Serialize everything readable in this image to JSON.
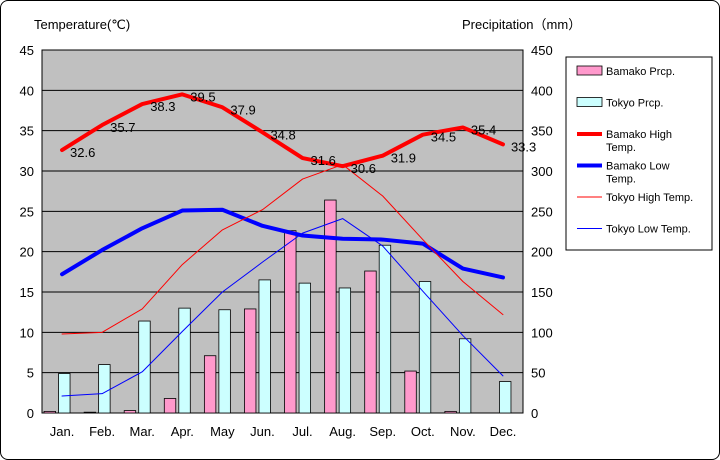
{
  "chart_data": {
    "type": "bar+line",
    "title": "",
    "ylabel_left": "Temperature(℃)",
    "ylabel_right": "Precipitation（mm）",
    "ylim_left": [
      0,
      45
    ],
    "ylim_right": [
      0,
      450
    ],
    "yticks_left": [
      "0",
      "5",
      "10",
      "15",
      "20",
      "25",
      "30",
      "35",
      "40",
      "45"
    ],
    "yticks_right": [
      "0",
      "50",
      "100",
      "150",
      "200",
      "250",
      "300",
      "350",
      "400",
      "450"
    ],
    "categories": [
      "Jan.",
      "Feb.",
      "Mar.",
      "Apr.",
      "May",
      "Jun.",
      "Jul.",
      "Aug.",
      "Sep.",
      "Oct.",
      "Nov.",
      "Dec."
    ],
    "bar_series": [
      {
        "name": "Bamako Prcp.",
        "color": "#ff99cc",
        "values": [
          2,
          1,
          3,
          18,
          71,
          129,
          226,
          264,
          176,
          52,
          2,
          0
        ]
      },
      {
        "name": "Tokyo Prcp.",
        "color": "#ccffff",
        "values": [
          49,
          60,
          114,
          130,
          128,
          165,
          161,
          155,
          208,
          163,
          92,
          39
        ]
      }
    ],
    "line_series": [
      {
        "name": "Bamako High Temp.",
        "color": "#ff0000",
        "width": "thick",
        "values": [
          32.6,
          35.7,
          38.3,
          39.5,
          37.9,
          34.8,
          31.6,
          30.6,
          31.9,
          34.5,
          35.4,
          33.3
        ],
        "labels": [
          "32.6",
          "35.7",
          "38.3",
          "39.5",
          "37.9",
          "34.8",
          "31.6",
          "30.6",
          "31.9",
          "34.5",
          "35.4",
          "33.3"
        ]
      },
      {
        "name": "Bamako Low Temp.",
        "color": "#0000ff",
        "width": "thick",
        "values": [
          17.2,
          20.2,
          22.9,
          25.1,
          25.2,
          23.2,
          22.0,
          21.6,
          21.5,
          21.0,
          17.9,
          16.8
        ]
      },
      {
        "name": "Tokyo High Temp.",
        "color": "#ff0000",
        "width": "thin",
        "values": [
          9.8,
          10.0,
          12.9,
          18.4,
          22.7,
          25.2,
          29.0,
          30.8,
          26.9,
          21.5,
          16.3,
          12.2
        ]
      },
      {
        "name": "Tokyo Low Temp.",
        "color": "#0000ff",
        "width": "thin",
        "values": [
          2.1,
          2.4,
          5.1,
          10.1,
          15.0,
          18.7,
          22.3,
          24.1,
          20.7,
          15.1,
          9.6,
          4.6
        ]
      }
    ],
    "legend_entries": [
      {
        "kind": "bar",
        "label": "Bamako Prcp.",
        "color": "#ff99cc"
      },
      {
        "kind": "bar",
        "label": "Tokyo Prcp.",
        "color": "#ccffff"
      },
      {
        "kind": "line",
        "label": "Bamako High Temp.",
        "color": "#ff0000",
        "width": "thick"
      },
      {
        "kind": "line",
        "label": "Bamako Low Temp.",
        "color": "#0000ff",
        "width": "thick"
      },
      {
        "kind": "line",
        "label": "Tokyo High Temp.",
        "color": "#ff0000",
        "width": "thin"
      },
      {
        "kind": "line",
        "label": "Tokyo Low Temp.",
        "color": "#0000ff",
        "width": "thin"
      }
    ],
    "plot_background": "#c0c0c0",
    "grid": true,
    "legend_position": "right"
  }
}
